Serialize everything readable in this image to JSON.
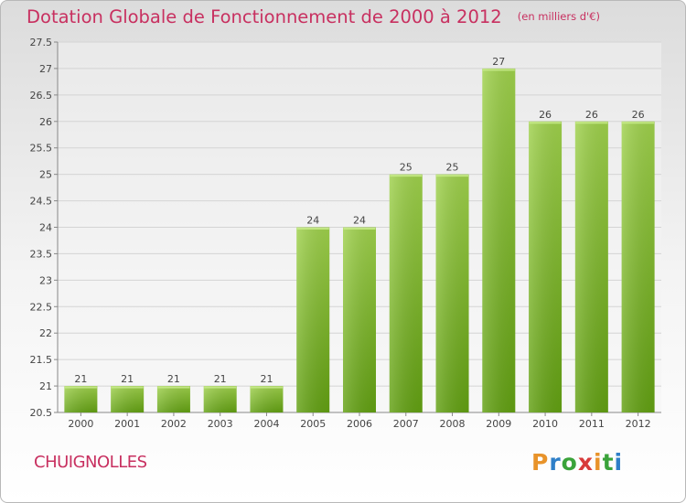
{
  "title": "Dotation Globale de Fonctionnement de 2000 à 2012",
  "subtitle": "(en milliers d'€)",
  "commune": "CHUIGNOLLES",
  "logo_letters": [
    "P",
    "r",
    "o",
    "x",
    "i",
    "t",
    "i"
  ],
  "logo_colors": [
    "#e8932a",
    "#2e7fc8",
    "#3aa33a",
    "#d83a3a",
    "#e8932a",
    "#3aa33a",
    "#2e7fc8"
  ],
  "bar_color": "#7dbb2e",
  "chart_data": {
    "type": "bar",
    "categories": [
      "2000",
      "2001",
      "2002",
      "2003",
      "2004",
      "2005",
      "2006",
      "2007",
      "2008",
      "2009",
      "2010",
      "2011",
      "2012"
    ],
    "values": [
      21,
      21,
      21,
      21,
      21,
      24,
      24,
      25,
      25,
      27,
      26,
      26,
      26
    ],
    "data_labels": [
      "21",
      "21",
      "21",
      "21",
      "21",
      "24",
      "24",
      "25",
      "25",
      "27",
      "26",
      "26",
      "26"
    ],
    "yticks": [
      "20.5",
      "21",
      "21.5",
      "22",
      "22.5",
      "23",
      "23.5",
      "24",
      "24.5",
      "25",
      "25.5",
      "26",
      "26.5",
      "27",
      "27.5"
    ],
    "ylim": [
      20.5,
      27.5
    ],
    "title": "Dotation Globale de Fonctionnement de 2000 à 2012",
    "subtitle": "(en milliers d'€)",
    "grid": true
  }
}
